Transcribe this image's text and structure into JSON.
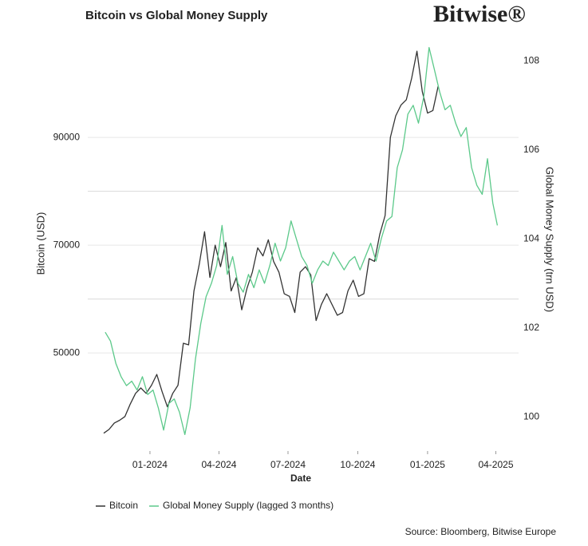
{
  "chart_data": {
    "type": "line",
    "title": "Bitcoin vs Global Money Supply",
    "logo": "Bitwise®",
    "source": "Source: Bloomberg, Bitwise Europe",
    "x_label": "Date",
    "y_label": "Bitcoin (USD)",
    "y2_label": "Global Money Supply (trn USD)",
    "xlim": [
      "2023-10-11",
      "2025-05-01"
    ],
    "xticks": [
      {
        "value": "2024-01-01",
        "label": "01-2024"
      },
      {
        "value": "2024-04-01",
        "label": "04-2024"
      },
      {
        "value": "2024-07-01",
        "label": "07-2024"
      },
      {
        "value": "2024-10-01",
        "label": "10-2024"
      },
      {
        "value": "2025-01-01",
        "label": "01-2025"
      },
      {
        "value": "2025-04-01",
        "label": "04-2025"
      }
    ],
    "ylim": [
      31800,
      107350
    ],
    "yticks": [
      50000,
      70000,
      90000
    ],
    "y_minor_grid": [
      60000,
      80000
    ],
    "y2lim": [
      99.23,
      108.38
    ],
    "y2ticks": [
      100,
      102,
      104,
      106,
      108
    ],
    "grid": true,
    "legend": "bottom",
    "series": [
      {
        "name": "Bitcoin",
        "color": "#333333",
        "axis": "y",
        "x": [
          "2023-11-01",
          "2023-11-08",
          "2023-11-15",
          "2023-11-22",
          "2023-11-29",
          "2023-12-06",
          "2023-12-13",
          "2023-12-20",
          "2023-12-27",
          "2024-01-03",
          "2024-01-10",
          "2024-01-17",
          "2024-01-24",
          "2024-01-31",
          "2024-02-07",
          "2024-02-14",
          "2024-02-21",
          "2024-02-28",
          "2024-03-06",
          "2024-03-13",
          "2024-03-20",
          "2024-03-27",
          "2024-04-03",
          "2024-04-10",
          "2024-04-17",
          "2024-04-24",
          "2024-05-01",
          "2024-05-08",
          "2024-05-15",
          "2024-05-22",
          "2024-05-29",
          "2024-06-05",
          "2024-06-12",
          "2024-06-19",
          "2024-06-26",
          "2024-07-03",
          "2024-07-10",
          "2024-07-17",
          "2024-07-24",
          "2024-07-31",
          "2024-08-07",
          "2024-08-14",
          "2024-08-21",
          "2024-08-28",
          "2024-09-04",
          "2024-09-11",
          "2024-09-18",
          "2024-09-25",
          "2024-10-02",
          "2024-10-09",
          "2024-10-16",
          "2024-10-23",
          "2024-10-30",
          "2024-11-06",
          "2024-11-13",
          "2024-11-20",
          "2024-11-27",
          "2024-12-04",
          "2024-12-11",
          "2024-12-18",
          "2024-12-25",
          "2025-01-01",
          "2025-01-08",
          "2025-01-15"
        ],
        "values": [
          35100,
          35800,
          37000,
          37500,
          38200,
          40500,
          42500,
          43500,
          42500,
          44000,
          46000,
          42800,
          40000,
          42500,
          44000,
          51800,
          51500,
          61500,
          66500,
          72500,
          64000,
          70000,
          66000,
          70500,
          61500,
          64000,
          58000,
          62000,
          65000,
          69500,
          68000,
          71000,
          67000,
          65000,
          61000,
          60500,
          57500,
          65000,
          66000,
          64500,
          56000,
          59000,
          61000,
          59000,
          57000,
          57500,
          61500,
          63500,
          60500,
          61000,
          67500,
          67000,
          72000,
          75500,
          90000,
          94000,
          96000,
          97000,
          101000,
          106000,
          98500,
          94500,
          95000,
          99500
        ]
      },
      {
        "name": "Global Money Supply (lagged 3 months)",
        "color": "#5cc98a",
        "axis": "y2",
        "x": [
          "2023-11-03",
          "2023-11-10",
          "2023-11-17",
          "2023-11-24",
          "2023-12-01",
          "2023-12-08",
          "2023-12-15",
          "2023-12-22",
          "2023-12-29",
          "2024-01-05",
          "2024-01-12",
          "2024-01-19",
          "2024-01-26",
          "2024-02-02",
          "2024-02-09",
          "2024-02-16",
          "2024-02-23",
          "2024-03-01",
          "2024-03-08",
          "2024-03-15",
          "2024-03-22",
          "2024-03-29",
          "2024-04-05",
          "2024-04-12",
          "2024-04-19",
          "2024-04-26",
          "2024-05-03",
          "2024-05-10",
          "2024-05-17",
          "2024-05-24",
          "2024-05-31",
          "2024-06-07",
          "2024-06-14",
          "2024-06-21",
          "2024-06-28",
          "2024-07-05",
          "2024-07-12",
          "2024-07-19",
          "2024-07-26",
          "2024-08-02",
          "2024-08-09",
          "2024-08-16",
          "2024-08-23",
          "2024-08-30",
          "2024-09-06",
          "2024-09-13",
          "2024-09-20",
          "2024-09-27",
          "2024-10-04",
          "2024-10-11",
          "2024-10-18",
          "2024-10-25",
          "2024-11-01",
          "2024-11-08",
          "2024-11-15",
          "2024-11-22",
          "2024-11-29",
          "2024-12-06",
          "2024-12-13",
          "2024-12-20",
          "2024-12-27",
          "2025-01-03",
          "2025-01-10",
          "2025-01-17",
          "2025-01-24",
          "2025-01-31",
          "2025-02-07",
          "2025-02-14",
          "2025-02-21",
          "2025-02-28",
          "2025-03-07",
          "2025-03-14",
          "2025-03-21",
          "2025-03-28",
          "2025-04-03"
        ],
        "values": [
          101.9,
          101.7,
          101.2,
          100.9,
          100.7,
          100.8,
          100.6,
          100.9,
          100.5,
          100.6,
          100.2,
          99.7,
          100.3,
          100.4,
          100.1,
          99.6,
          100.2,
          101.3,
          102.1,
          102.7,
          103.0,
          103.4,
          104.3,
          103.2,
          103.6,
          103.0,
          102.8,
          103.2,
          102.9,
          103.3,
          103.0,
          103.4,
          103.9,
          103.5,
          103.8,
          104.4,
          104.0,
          103.6,
          103.4,
          103.0,
          103.3,
          103.5,
          103.4,
          103.7,
          103.5,
          103.3,
          103.5,
          103.6,
          103.3,
          103.6,
          103.9,
          103.5,
          104.0,
          104.4,
          104.5,
          105.6,
          106.0,
          106.8,
          107.0,
          106.6,
          107.2,
          108.3,
          107.8,
          107.3,
          106.9,
          107.0,
          106.6,
          106.3,
          106.5,
          105.6,
          105.2,
          105.0,
          105.8,
          104.8,
          104.3
        ]
      }
    ]
  }
}
